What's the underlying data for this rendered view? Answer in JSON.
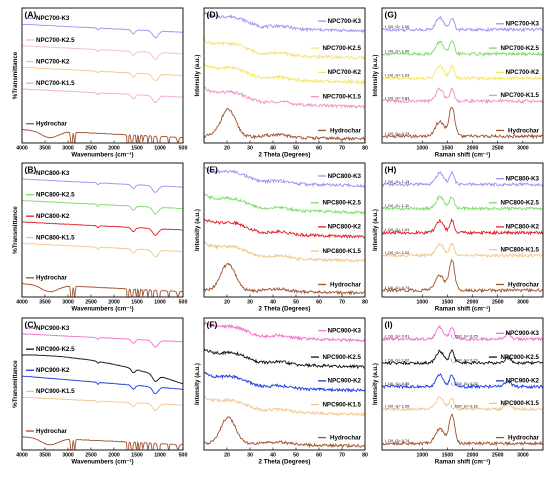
{
  "figure": {
    "background": "#ffffff",
    "colors": {
      "K3": "#a88cf2",
      "K2.5": "#7ddb6a",
      "K2": "#f04040",
      "K1.5": "#f3b9d6",
      "Hydrochar": "#a0522d",
      "K2.5_900": "#111111",
      "K2_900": "#1a3be0",
      "K1.5_800_900": "#f5c48a"
    }
  },
  "chart_data": [
    {
      "id": "A",
      "panel_label": "(A)",
      "type": "line",
      "kind": "ftir",
      "xlabel": "Wavenumbers (cm⁻¹)",
      "ylabel": "%Transmittance",
      "xlim": [
        4000,
        500
      ],
      "x_ticks": [
        "4000",
        "3500",
        "3000",
        "2500",
        "2000",
        "1500",
        "1000",
        "500"
      ],
      "y_ticks": [],
      "series": [
        {
          "name": "NPC700-K3",
          "color": "#a88cf2"
        },
        {
          "name": "NPC700-K2.5",
          "color": "#f3b9d6"
        },
        {
          "name": "NPC700-K2",
          "color": "#f5c48a"
        },
        {
          "name": "NPC700-K1.5",
          "color": "#f5a8d8"
        },
        {
          "name": "Hydrochar",
          "color": "#a0522d"
        }
      ],
      "annotations": []
    },
    {
      "id": "D",
      "panel_label": "(D)",
      "type": "line",
      "kind": "xrd",
      "xlabel": "2 Theta (Degrees)",
      "ylabel": "Intensity (a.u.)",
      "xlim": [
        10,
        80
      ],
      "x_ticks": [
        "20",
        "30",
        "40",
        "50",
        "60",
        "70",
        "80"
      ],
      "y_ticks": [],
      "series": [
        {
          "name": "NPC700-K3",
          "color": "#a88cf2"
        },
        {
          "name": "NPC700-K2.5",
          "color": "#f3e27a"
        },
        {
          "name": "NPC700-K2",
          "color": "#f5e65a"
        },
        {
          "name": "NPC700-K1.5",
          "color": "#f090c8"
        },
        {
          "name": "Hydrochar",
          "color": "#a0522d"
        }
      ],
      "annotations": []
    },
    {
      "id": "G",
      "panel_label": "(G)",
      "type": "line",
      "kind": "raman",
      "xlabel": "Raman shift (cm⁻¹)",
      "ylabel": "Intensity (a.u.)",
      "xlim": [
        200,
        3400
      ],
      "x_ticks": [
        "1000",
        "1500",
        "2000",
        "2500",
        "3000"
      ],
      "y_ticks": [],
      "series": [
        {
          "name": "NPC700-K3",
          "color": "#a88cf2"
        },
        {
          "name": "NPC700-K2.5",
          "color": "#7ddb6a"
        },
        {
          "name": "NPC700-K2",
          "color": "#f5e65a"
        },
        {
          "name": "NPC700-K1.5",
          "color": "#f090c8"
        },
        {
          "name": "Hydrochar",
          "color": "#a0522d"
        }
      ],
      "annotations": [
        {
          "text": "I_D/I_G= 1.00",
          "series": 0
        },
        {
          "text": "I_D/I_G= 1.00",
          "series": 1
        },
        {
          "text": "I_D/I_G= 1.03",
          "series": 2
        },
        {
          "text": "I_D/I_G= 0.83",
          "series": 3
        },
        {
          "text": "I_D/I_G= 0.74",
          "series": 4
        }
      ]
    },
    {
      "id": "B",
      "panel_label": "(B)",
      "type": "line",
      "kind": "ftir",
      "xlabel": "Wavenumbers (cm⁻¹)",
      "ylabel": "%Transmittance",
      "xlim": [
        4000,
        500
      ],
      "x_ticks": [
        "4000",
        "3500",
        "3000",
        "2500",
        "2000",
        "1500",
        "1000",
        "500"
      ],
      "y_ticks": [],
      "series": [
        {
          "name": "NPC800-K3",
          "color": "#a88cf2"
        },
        {
          "name": "NPC800-K2.5",
          "color": "#7ddb6a"
        },
        {
          "name": "NPC800-K2",
          "color": "#e02020"
        },
        {
          "name": "NPC800-K1.5",
          "color": "#f5c48a"
        },
        {
          "name": "Hydrochar",
          "color": "#a0522d"
        }
      ],
      "annotations": []
    },
    {
      "id": "E",
      "panel_label": "(E)",
      "type": "line",
      "kind": "xrd",
      "xlabel": "2 Theta (Degrees)",
      "ylabel": "Intensity (a.u.)",
      "xlim": [
        10,
        80
      ],
      "x_ticks": [
        "20",
        "30",
        "40",
        "50",
        "60",
        "70",
        "80"
      ],
      "y_ticks": [],
      "series": [
        {
          "name": "NPC800-K3",
          "color": "#a88cf2"
        },
        {
          "name": "NPC800-K2.5",
          "color": "#7ddb6a"
        },
        {
          "name": "NPC800-K2",
          "color": "#e02020"
        },
        {
          "name": "NPC800-K1.5",
          "color": "#f5c48a"
        },
        {
          "name": "Hydrochar",
          "color": "#a0522d"
        }
      ],
      "annotations": []
    },
    {
      "id": "H",
      "panel_label": "(H)",
      "type": "line",
      "kind": "raman",
      "xlabel": "Raman shift (cm⁻¹)",
      "ylabel": "Intensity (a.u.)",
      "xlim": [
        200,
        3400
      ],
      "x_ticks": [
        "1000",
        "1500",
        "2000",
        "2500",
        "3000"
      ],
      "y_ticks": [],
      "series": [
        {
          "name": "NPC800-K3",
          "color": "#a88cf2"
        },
        {
          "name": "NPC800-K2.5",
          "color": "#7ddb6a"
        },
        {
          "name": "NPC800-K2",
          "color": "#e02020"
        },
        {
          "name": "NPC800-K1.5",
          "color": "#f5c48a"
        },
        {
          "name": "Hydrochar",
          "color": "#a0522d"
        }
      ],
      "annotations": [
        {
          "text": "I_D/I_G= 1.13",
          "series": 0
        },
        {
          "text": "I_D/I_G= 1.11",
          "series": 1
        },
        {
          "text": "I_D/I_G= 1.01",
          "series": 2
        },
        {
          "text": "I_D/I_G= 1.02",
          "series": 3
        },
        {
          "text": "I_D/I_G= 0.74",
          "series": 4
        }
      ]
    },
    {
      "id": "C",
      "panel_label": "(C)",
      "type": "line",
      "kind": "ftir",
      "xlabel": "Wavenumbers (cm⁻¹)",
      "ylabel": "%Transmittance",
      "xlim": [
        4000,
        500
      ],
      "x_ticks": [
        "4000",
        "3500",
        "3000",
        "2500",
        "2000",
        "1500",
        "1000",
        "500"
      ],
      "y_ticks": [],
      "series": [
        {
          "name": "NPC900-K3",
          "color": "#f070d0"
        },
        {
          "name": "NPC900-K2.5",
          "color": "#111111"
        },
        {
          "name": "NPC900-K2",
          "color": "#1a3be0"
        },
        {
          "name": "NPC900-K1.5",
          "color": "#f5c48a"
        },
        {
          "name": "Hydrochar",
          "color": "#a0522d"
        }
      ],
      "annotations": []
    },
    {
      "id": "F",
      "panel_label": "(F)",
      "type": "line",
      "kind": "xrd",
      "xlabel": "2 Theta (Degrees)",
      "ylabel": "Intensity (a.u.)",
      "xlim": [
        10,
        80
      ],
      "x_ticks": [
        "20",
        "30",
        "40",
        "50",
        "60",
        "70",
        "80"
      ],
      "y_ticks": [],
      "series": [
        {
          "name": "NPC900-K3",
          "color": "#f070d0"
        },
        {
          "name": "NPC900-K2.5",
          "color": "#111111"
        },
        {
          "name": "NPC900-K2",
          "color": "#1a3be0"
        },
        {
          "name": "NPC900-K1.5",
          "color": "#f5c48a"
        },
        {
          "name": "Hydrochar",
          "color": "#a0522d"
        }
      ],
      "annotations": []
    },
    {
      "id": "I",
      "panel_label": "(I)",
      "type": "line",
      "kind": "raman",
      "xlabel": "Raman shift (cm⁻¹)",
      "ylabel": "Intensity (a.u.)",
      "xlim": [
        200,
        3400
      ],
      "x_ticks": [
        "1000",
        "1500",
        "2000",
        "2500",
        "3000"
      ],
      "y_ticks": [],
      "series": [
        {
          "name": "NPC900-K3",
          "color": "#f070d0"
        },
        {
          "name": "NPC900-K2.5",
          "color": "#111111"
        },
        {
          "name": "NPC900-K2",
          "color": "#1a3be0"
        },
        {
          "name": "NPC900-K1.5",
          "color": "#f5c48a"
        },
        {
          "name": "Hydrochar",
          "color": "#a0522d"
        }
      ],
      "annotations": [
        {
          "text": "I_D/I_G= 0.91",
          "series": 0
        },
        {
          "text": "I_2D/I_G= 0.25",
          "series": 0
        },
        {
          "text": "I_D/I_G= 1.02",
          "series": 1
        },
        {
          "text": "I_2D/I_G= 0.23",
          "series": 1
        },
        {
          "text": "I_D/I_G= 0.85",
          "series": 2
        },
        {
          "text": "I_2D/I_G= 0.32",
          "series": 2
        },
        {
          "text": "I_D/I_G= 1.09",
          "series": 3
        },
        {
          "text": "I_2D/I_G= 0.18",
          "series": 3
        },
        {
          "text": "I_D/I_G= 0.74",
          "series": 4
        }
      ]
    }
  ]
}
